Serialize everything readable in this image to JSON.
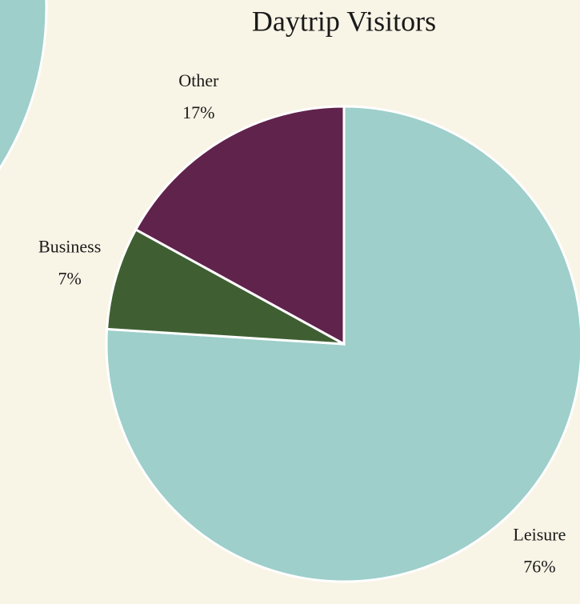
{
  "chart_data": {
    "type": "pie",
    "title": "Daytrip Visitors",
    "categories": [
      "Leisure",
      "Business",
      "Other"
    ],
    "values": [
      76,
      7,
      17
    ],
    "value_labels": [
      "76%",
      "7%",
      "17%"
    ],
    "colors": [
      "#9ecfca",
      "#3f5f32",
      "#60234c"
    ]
  }
}
